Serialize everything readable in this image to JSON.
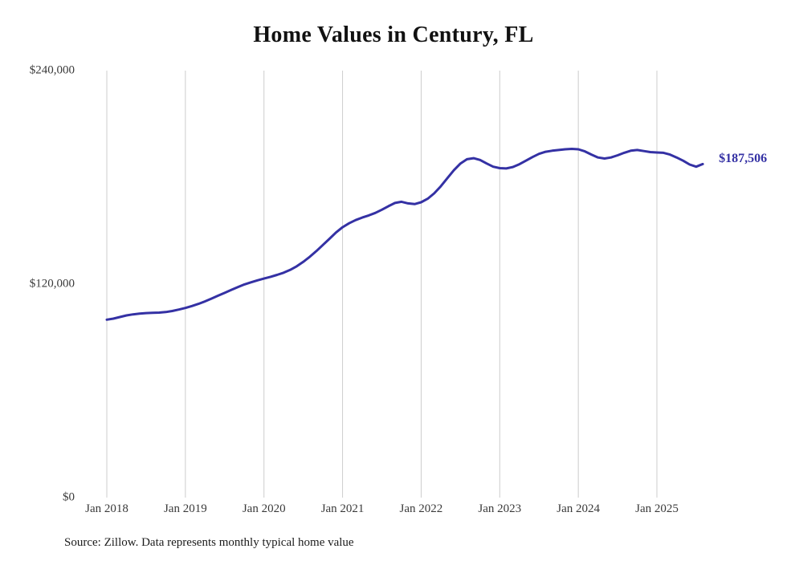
{
  "title": "Home Values in Century, FL",
  "end_label": "$187,506",
  "source_note": "Source: Zillow. Data represents monthly typical home value",
  "colors": {
    "line": "#3431a4",
    "grid": "#cccccc",
    "axis_text": "#3a3a3a",
    "title_text": "#111111"
  },
  "chart_data": {
    "type": "line",
    "title": "Home Values in Century, FL",
    "series_name": "Typical home value (monthly)",
    "x_start": "Jan 2018",
    "x_end": "Aug 2025",
    "x_frequency": "monthly",
    "values": [
      100000,
      100600,
      101500,
      102400,
      103000,
      103400,
      103700,
      103900,
      104000,
      104300,
      104900,
      105700,
      106600,
      107700,
      108900,
      110300,
      111900,
      113500,
      115100,
      116700,
      118300,
      119800,
      121000,
      122100,
      123100,
      124100,
      125200,
      126400,
      128000,
      130000,
      132500,
      135400,
      138600,
      142000,
      145500,
      149000,
      152000,
      154200,
      156000,
      157400,
      158600,
      160000,
      161800,
      163800,
      165600,
      166300,
      165400,
      165000,
      166000,
      168000,
      171000,
      175000,
      179500,
      184000,
      187800,
      190200,
      190800,
      189800,
      187800,
      186000,
      185200,
      185000,
      185800,
      187400,
      189400,
      191400,
      193200,
      194400,
      195000,
      195400,
      195800,
      196000,
      195800,
      194600,
      192800,
      191200,
      190600,
      191200,
      192400,
      193800,
      195000,
      195400,
      194800,
      194200,
      194000,
      193800,
      192800,
      191200,
      189400,
      187200,
      186000,
      187506
    ],
    "final_value": 187506,
    "x_tick_labels": [
      "Jan 2018",
      "Jan 2019",
      "Jan 2020",
      "Jan 2021",
      "Jan 2022",
      "Jan 2023",
      "Jan 2024",
      "Jan 2025"
    ],
    "y_ticks": [
      {
        "label": "$0",
        "value": 0
      },
      {
        "label": "$120,000",
        "value": 120000
      },
      {
        "label": "$240,000",
        "value": 240000
      }
    ],
    "ylim": [
      0,
      240000
    ],
    "grid": "vertical-only",
    "legend": "none"
  }
}
